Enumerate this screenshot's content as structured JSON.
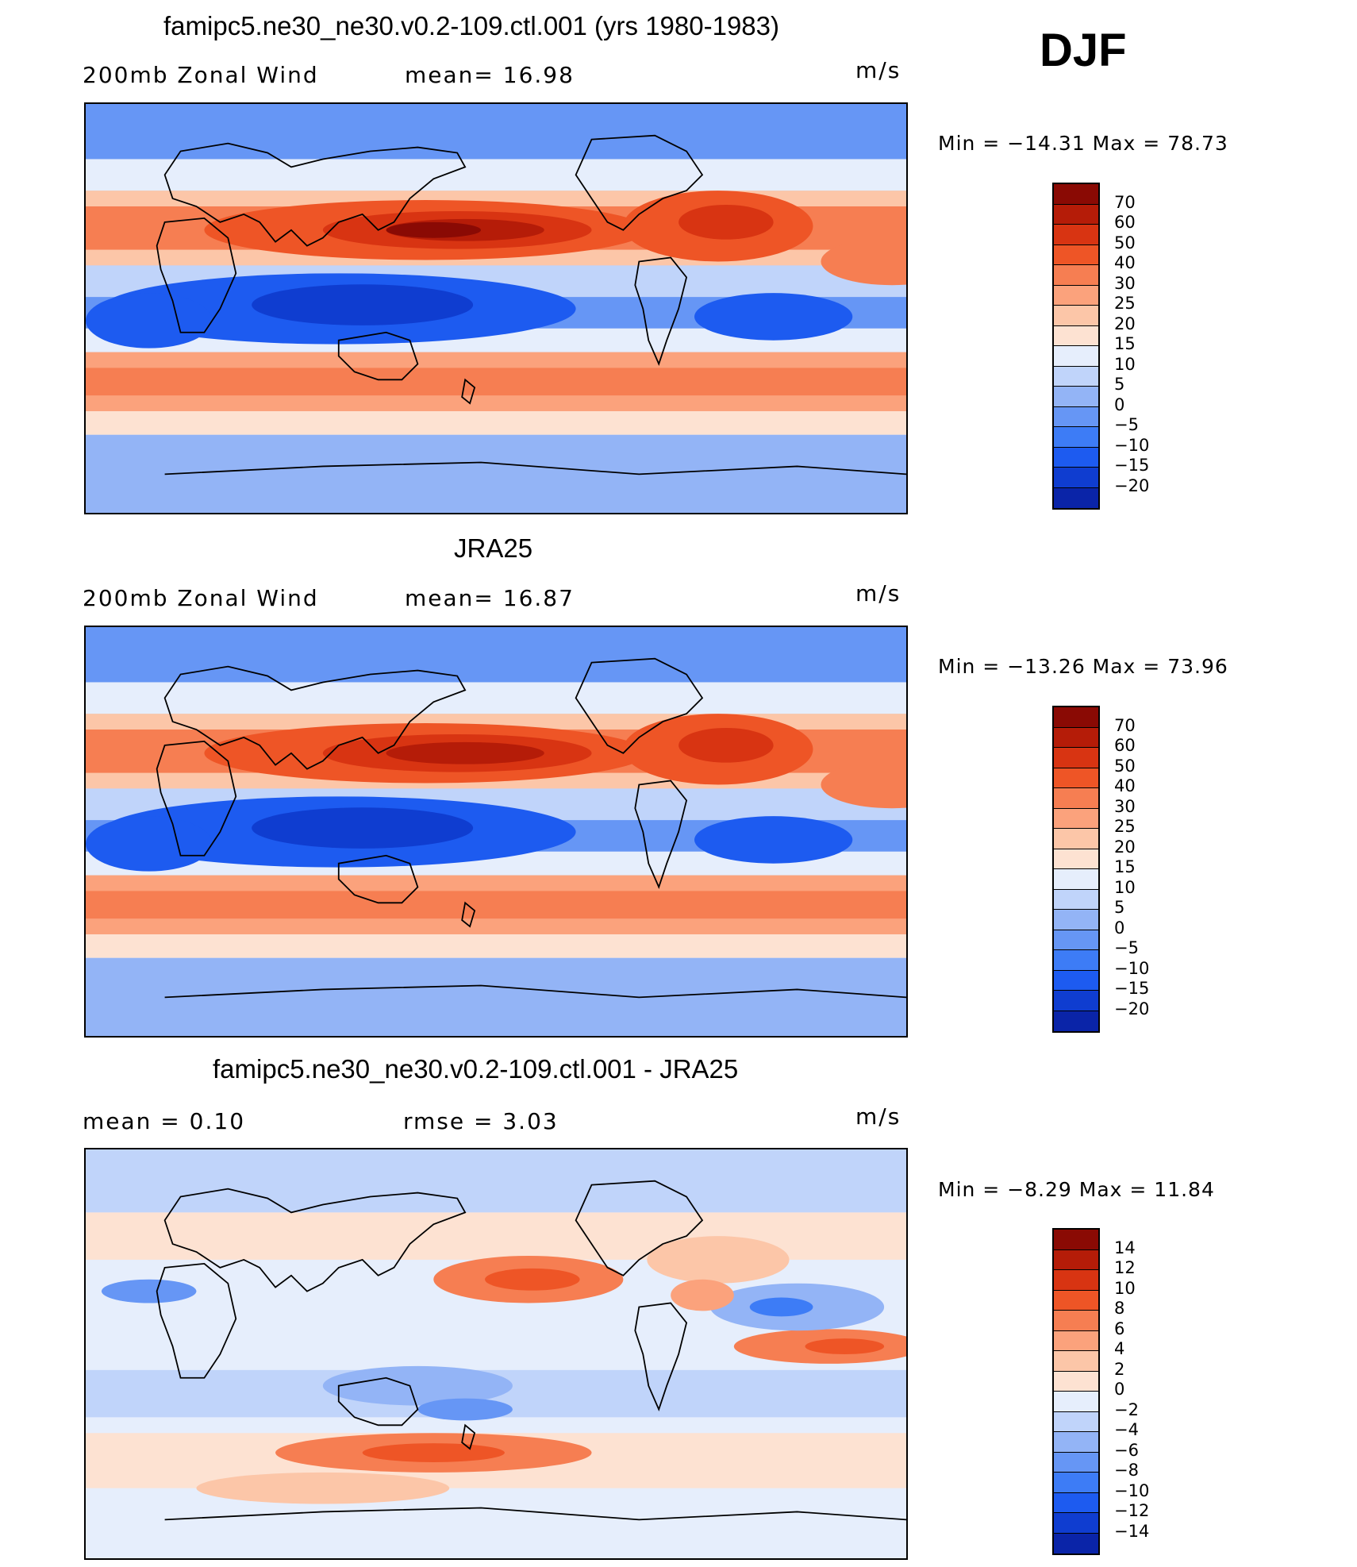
{
  "season": "DJF",
  "palette_abs": [
    "#000f8a",
    "#0a24a8",
    "#0f3dd0",
    "#1d5bf0",
    "#3d7cf6",
    "#6696f5",
    "#93b4f6",
    "#c0d4fa",
    "#e6eefc",
    "#fde2d2",
    "#fcc6a8",
    "#fba27c",
    "#f67e52",
    "#ee5526",
    "#d83412",
    "#b51c08",
    "#8a0a04"
  ],
  "palette_diff": [
    "#000f8a",
    "#0a24a8",
    "#0f3dd0",
    "#1d5bf0",
    "#3d7cf6",
    "#6696f5",
    "#93b4f6",
    "#c0d4fa",
    "#e6eefc",
    "#fde2d2",
    "#fcc6a8",
    "#fba27c",
    "#f67e52",
    "#ee5526",
    "#d83412",
    "#b51c08",
    "#8a0a04"
  ],
  "panels": [
    {
      "title": "famipc5.ne30_ne30.v0.2-109.ctl.001 (yrs 1980-1983)",
      "left_label": "200mb  Zonal  Wind",
      "mid_label": "mean=   16.98",
      "units": "m/s",
      "min_max": "Min  =  −14.31  Max  =    78.73",
      "levels": [
        "70",
        "60",
        "50",
        "40",
        "30",
        "25",
        "20",
        "15",
        "10",
        "5",
        "0",
        "−5",
        "−10",
        "−15",
        "−20"
      ]
    },
    {
      "title": "JRA25",
      "left_label": "200mb  Zonal  Wind",
      "mid_label": "mean=   16.87",
      "units": "m/s",
      "min_max": "Min  =  −13.26  Max  =    73.96",
      "levels": [
        "70",
        "60",
        "50",
        "40",
        "30",
        "25",
        "20",
        "15",
        "10",
        "5",
        "0",
        "−5",
        "−10",
        "−15",
        "−20"
      ]
    },
    {
      "title": "famipc5.ne30_ne30.v0.2-109.ctl.001 - JRA25",
      "left_label": "mean  =     0.10",
      "mid_label": "rmse  =     3.03",
      "units": "m/s",
      "min_max": "Min  =    −8.29  Max  =    11.84",
      "levels": [
        "14",
        "12",
        "10",
        "8",
        "6",
        "4",
        "2",
        "0",
        "−2",
        "−4",
        "−6",
        "−8",
        "−10",
        "−12",
        "−14"
      ]
    }
  ]
}
